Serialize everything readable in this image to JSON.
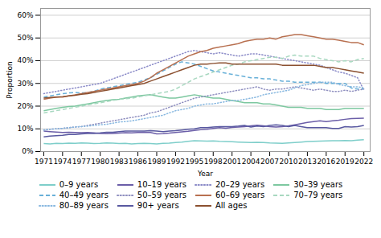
{
  "chart_data": {
    "type": "line",
    "xlabel": "Year",
    "ylabel": "Proportion",
    "x": [
      1971,
      1972,
      1973,
      1974,
      1975,
      1976,
      1977,
      1978,
      1979,
      1980,
      1981,
      1982,
      1983,
      1984,
      1985,
      1986,
      1987,
      1988,
      1989,
      1990,
      1991,
      1992,
      1993,
      1994,
      1995,
      1996,
      1997,
      1998,
      1999,
      2000,
      2001,
      2002,
      2003,
      2004,
      2005,
      2006,
      2007,
      2008,
      2009,
      2010,
      2011,
      2012,
      2013,
      2014,
      2015,
      2016,
      2017,
      2018,
      2019,
      2020,
      2021,
      2022
    ],
    "series": [
      {
        "name": "0–9 years",
        "color": "#7ECECA",
        "line_style": "solid",
        "values": [
          3.5,
          3.4,
          3.6,
          3.5,
          3.7,
          3.6,
          3.8,
          3.7,
          3.5,
          3.6,
          3.8,
          3.7,
          3.5,
          3.6,
          3.4,
          3.5,
          3.6,
          3.5,
          3.4,
          3.6,
          3.7,
          4.0,
          4.2,
          4.5,
          4.8,
          4.7,
          4.6,
          4.7,
          4.5,
          4.4,
          4.3,
          4.2,
          4.1,
          4.0,
          4.1,
          4.0,
          3.8,
          3.7,
          3.6,
          3.8,
          4.0,
          4.2,
          4.4,
          4.5,
          4.6,
          4.7,
          4.8,
          4.8,
          4.9,
          4.8,
          5.0,
          5.2
        ]
      },
      {
        "name": "10–19 years",
        "color": "#6B5EA8",
        "line_style": "solid",
        "values": [
          9.0,
          8.8,
          8.6,
          8.4,
          8.5,
          8.4,
          8.3,
          8.4,
          8.2,
          8.0,
          7.9,
          8.0,
          8.1,
          8.3,
          8.2,
          8.4,
          8.5,
          8.4,
          7.8,
          7.9,
          8.1,
          8.4,
          8.7,
          8.9,
          9.3,
          9.6,
          9.8,
          10.2,
          10.5,
          10.3,
          10.6,
          10.8,
          11.0,
          11.3,
          11.6,
          11.3,
          11.0,
          10.8,
          11.0,
          11.3,
          11.8,
          12.3,
          12.8,
          13.2,
          13.5,
          13.2,
          13.5,
          13.8,
          14.2,
          14.5,
          14.6,
          14.7
        ]
      },
      {
        "name": "20–29 years",
        "color": "#8B8BC8",
        "line_style": "dotted",
        "values": [
          25.5,
          26.0,
          26.5,
          27.0,
          27.5,
          28.0,
          28.5,
          29.0,
          29.5,
          30.0,
          31.0,
          32.0,
          33.0,
          34.0,
          35.0,
          36.0,
          37.0,
          38.0,
          39.0,
          40.0,
          41.0,
          42.0,
          43.0,
          44.0,
          44.5,
          44.0,
          43.5,
          43.0,
          43.5,
          43.0,
          42.5,
          42.0,
          42.5,
          43.0,
          43.0,
          42.5,
          42.0,
          41.5,
          41.0,
          40.5,
          40.0,
          39.5,
          39.0,
          38.5,
          38.0,
          37.0,
          36.0,
          35.0,
          34.5,
          33.5,
          32.5,
          27.0
        ]
      },
      {
        "name": "30–39 years",
        "color": "#7DC8A0",
        "line_style": "solid",
        "values": [
          18.0,
          18.5,
          19.0,
          19.5,
          19.8,
          20.0,
          20.5,
          21.0,
          21.5,
          22.0,
          22.5,
          22.8,
          23.0,
          23.5,
          24.0,
          24.5,
          24.8,
          25.0,
          24.5,
          24.0,
          23.5,
          23.5,
          24.0,
          24.5,
          25.0,
          24.5,
          24.0,
          23.5,
          23.5,
          23.0,
          22.5,
          22.0,
          21.5,
          21.5,
          21.5,
          21.0,
          21.0,
          20.5,
          20.0,
          19.5,
          19.5,
          19.5,
          19.0,
          19.0,
          19.0,
          18.5,
          18.5,
          18.5,
          19.0,
          19.0,
          19.0,
          19.0
        ]
      },
      {
        "name": "40–49 years",
        "color": "#68B0D8",
        "line_style": "dashed",
        "values": [
          24.0,
          24.5,
          25.0,
          25.5,
          25.8,
          26.0,
          25.8,
          26.0,
          26.5,
          27.5,
          28.0,
          28.5,
          29.0,
          29.5,
          30.0,
          30.5,
          31.5,
          32.5,
          34.0,
          35.5,
          37.0,
          38.5,
          39.5,
          39.0,
          38.5,
          37.5,
          36.5,
          35.5,
          35.0,
          34.5,
          34.0,
          33.5,
          33.0,
          32.5,
          32.5,
          32.0,
          32.0,
          31.5,
          31.0,
          31.0,
          30.5,
          30.5,
          30.5,
          30.5,
          30.5,
          30.0,
          30.0,
          30.0,
          30.0,
          28.0,
          27.5,
          27.5
        ]
      },
      {
        "name": "50–59 years",
        "color": "#9090C0",
        "line_style": "dotted",
        "values": [
          9.5,
          9.8,
          10.0,
          10.2,
          10.5,
          10.8,
          11.0,
          11.5,
          12.0,
          12.5,
          13.0,
          13.5,
          14.0,
          14.5,
          15.0,
          15.5,
          16.0,
          17.0,
          17.5,
          18.5,
          19.5,
          20.5,
          21.5,
          22.5,
          23.5,
          24.0,
          24.5,
          25.0,
          25.5,
          26.0,
          26.5,
          27.0,
          27.5,
          28.0,
          28.5,
          27.5,
          27.0,
          27.5,
          27.5,
          28.0,
          28.5,
          28.0,
          27.5,
          27.0,
          27.5,
          27.0,
          26.5,
          26.5,
          27.0,
          26.5,
          27.0,
          27.5
        ]
      },
      {
        "name": "60–69 years",
        "color": "#B87050",
        "line_style": "solid",
        "values": [
          23.0,
          23.5,
          24.0,
          24.0,
          24.5,
          25.0,
          25.5,
          26.0,
          26.5,
          27.0,
          27.5,
          28.0,
          28.5,
          29.0,
          29.5,
          30.0,
          31.0,
          32.5,
          34.5,
          36.0,
          37.5,
          39.0,
          40.5,
          42.0,
          43.0,
          44.0,
          44.5,
          45.5,
          46.0,
          46.5,
          47.0,
          47.5,
          48.5,
          49.0,
          49.5,
          49.5,
          50.0,
          49.5,
          50.5,
          51.0,
          51.5,
          51.5,
          51.0,
          50.5,
          50.0,
          49.5,
          49.5,
          49.0,
          48.5,
          48.0,
          48.0,
          47.0
        ]
      },
      {
        "name": "70–79 years",
        "color": "#A8D8C0",
        "line_style": "dashed",
        "values": [
          17.0,
          17.5,
          18.0,
          18.5,
          19.0,
          19.5,
          20.0,
          20.5,
          21.0,
          21.5,
          22.0,
          22.5,
          23.0,
          23.2,
          23.5,
          24.0,
          24.5,
          25.0,
          25.5,
          26.0,
          26.5,
          27.5,
          29.0,
          30.5,
          32.0,
          33.0,
          34.0,
          35.0,
          36.0,
          37.0,
          38.0,
          38.5,
          39.5,
          40.0,
          40.5,
          41.0,
          41.5,
          41.5,
          41.0,
          42.0,
          42.5,
          42.0,
          42.0,
          42.0,
          41.0,
          40.5,
          40.0,
          39.5,
          40.0,
          39.5,
          40.5,
          41.0
        ]
      },
      {
        "name": "80–89 years",
        "color": "#88B8E0",
        "line_style": "dotted",
        "values": [
          9.5,
          9.8,
          10.0,
          10.2,
          10.5,
          10.8,
          11.0,
          11.2,
          11.5,
          11.8,
          12.0,
          12.5,
          13.0,
          13.2,
          13.5,
          14.0,
          14.5,
          15.0,
          15.5,
          16.0,
          17.0,
          18.0,
          18.5,
          19.0,
          20.0,
          20.5,
          21.0,
          21.0,
          21.5,
          22.0,
          22.5,
          22.5,
          23.0,
          23.5,
          24.0,
          25.0,
          25.5,
          26.0,
          26.5,
          27.0,
          28.0,
          29.0,
          29.5,
          30.0,
          30.5,
          30.5,
          30.5,
          29.5,
          29.0,
          28.5,
          28.5,
          28.0
        ]
      },
      {
        "name": "90+ years",
        "color": "#5858A0",
        "line_style": "solid",
        "values": [
          6.5,
          6.8,
          7.0,
          7.2,
          7.5,
          7.5,
          7.8,
          8.0,
          8.0,
          8.2,
          8.5,
          8.5,
          8.8,
          9.0,
          9.0,
          9.0,
          9.0,
          9.2,
          9.0,
          8.8,
          9.0,
          9.2,
          9.5,
          9.8,
          10.0,
          10.5,
          10.5,
          10.8,
          11.0,
          11.0,
          11.0,
          11.2,
          11.5,
          10.8,
          11.2,
          11.0,
          11.5,
          11.8,
          11.5,
          11.0,
          11.5,
          11.0,
          10.5,
          10.5,
          10.5,
          10.5,
          10.2,
          10.2,
          11.0,
          10.8,
          11.0,
          11.5
        ]
      },
      {
        "name": "All ages",
        "color": "#8B5030",
        "line_style": "solid",
        "values": [
          23.5,
          23.8,
          24.0,
          24.2,
          24.5,
          24.8,
          25.2,
          25.5,
          26.0,
          26.5,
          27.0,
          27.5,
          28.0,
          28.5,
          29.0,
          29.5,
          30.0,
          31.0,
          32.0,
          33.0,
          34.0,
          35.0,
          36.0,
          37.0,
          38.0,
          38.5,
          38.5,
          38.8,
          39.0,
          39.0,
          38.5,
          38.5,
          38.5,
          38.5,
          38.5,
          38.5,
          38.5,
          38.5,
          38.0,
          38.0,
          38.0,
          38.0,
          38.0,
          38.0,
          37.5,
          37.0,
          37.0,
          36.5,
          36.0,
          35.5,
          35.0,
          34.5
        ]
      }
    ],
    "xlim": [
      1970.5,
      2023
    ],
    "xticks": [
      1971,
      1974,
      1977,
      1980,
      1983,
      1986,
      1989,
      1992,
      1995,
      1998,
      2001,
      2004,
      2007,
      2010,
      2013,
      2016,
      2019,
      2022
    ],
    "ylim": [
      0,
      63
    ],
    "yticks": [
      {
        "value": 0,
        "label": "0%"
      },
      {
        "value": 10,
        "label": "10%"
      },
      {
        "value": 20,
        "label": "20%"
      },
      {
        "value": 30,
        "label": "30%"
      },
      {
        "value": 40,
        "label": "40%"
      },
      {
        "value": 50,
        "label": "50%"
      },
      {
        "value": 60,
        "label": "60%"
      }
    ],
    "grid": "y",
    "legend": "bottom"
  }
}
